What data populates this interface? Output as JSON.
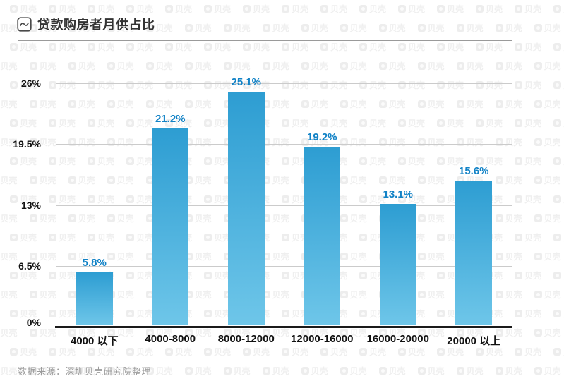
{
  "header": {
    "title": "贷款购房者月供占比",
    "icon": "line-chart-icon"
  },
  "watermark": {
    "logo_text": "贝壳"
  },
  "source": {
    "text": "数据来源：深圳贝壳研究院整理"
  },
  "chart_data": {
    "type": "bar",
    "title": "贷款购房者月供占比",
    "categories": [
      "4000 以下",
      "4000-8000",
      "8000-12000",
      "12000-16000",
      "16000-20000",
      "20000 以上"
    ],
    "values": [
      5.8,
      21.2,
      25.1,
      19.2,
      13.1,
      15.6
    ],
    "value_labels": [
      "5.8%",
      "21.2%",
      "25.1%",
      "19.2%",
      "13.1%",
      "15.6%"
    ],
    "xlabel": "",
    "ylabel": "",
    "ylim": [
      0,
      26
    ],
    "yticks": [
      0,
      6.5,
      13,
      19.5,
      26
    ],
    "ytick_labels": [
      "0%",
      "6.5%",
      "13%",
      "19.5%",
      "26%"
    ],
    "grid": true,
    "legend": "none",
    "colors": {
      "bar_top": "#2d9dd2",
      "bar_bottom": "#6ec6e9",
      "value_label": "#1182c6",
      "grid": "#cbcbcb",
      "axis": "#1a1a1a",
      "tick_text": "#111111"
    }
  }
}
